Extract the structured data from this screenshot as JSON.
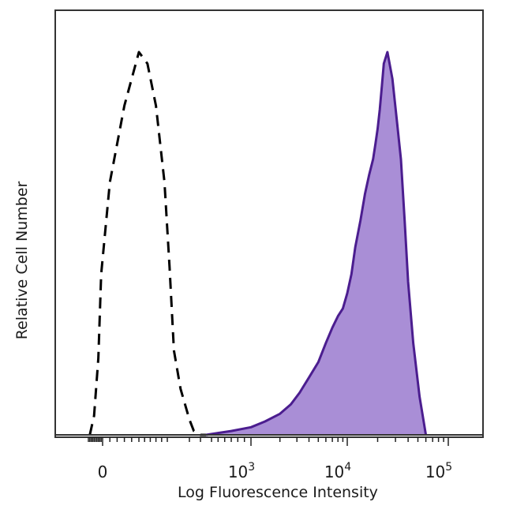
{
  "chart_data": {
    "type": "area",
    "title": "",
    "xlabel": "Log Fluorescence Intensity",
    "ylabel": "Relative Cell Number",
    "x_scale": "biexponential",
    "grid": false,
    "legend": "none",
    "ylim": [
      0,
      100
    ],
    "xticks": [
      {
        "label": "0",
        "value": 0
      },
      {
        "label": "10",
        "exponent": "3",
        "value": 1000
      },
      {
        "label": "10",
        "exponent": "4",
        "value": 10000
      },
      {
        "label": "10",
        "exponent": "5",
        "value": 100000
      }
    ],
    "series": [
      {
        "style": "dashed",
        "color": "#000000",
        "fill": "none",
        "x": [
          -90,
          -60,
          -30,
          -10,
          10,
          30,
          50,
          65,
          80,
          95,
          110,
          130,
          160,
          200,
          240,
          300,
          350
        ],
        "y": [
          0,
          5,
          20,
          42,
          66,
          86,
          100,
          97,
          86,
          66,
          44,
          22,
          12,
          4,
          1,
          0,
          0
        ]
      },
      {
        "style": "solid",
        "color": "#4b1d8f",
        "fill": "#a98ed6",
        "x": [
          350,
          500,
          700,
          1000,
          1400,
          2000,
          2600,
          3200,
          4000,
          5000,
          6000,
          7000,
          8000,
          9000,
          10000,
          11000,
          12000,
          13500,
          15000,
          16500,
          18000,
          19000,
          20000,
          21000,
          22000,
          23000,
          25000,
          28000,
          31000,
          34000,
          37000,
          40000,
          45000,
          52000,
          60000
        ],
        "y": [
          0,
          0.5,
          1,
          2,
          3.5,
          5.5,
          8,
          11,
          15,
          19,
          24,
          28,
          31,
          33,
          37,
          42,
          49,
          56,
          63,
          68,
          72,
          76,
          80,
          85,
          91,
          97,
          100,
          93,
          82,
          72,
          56,
          40,
          24,
          10,
          0
        ]
      }
    ]
  }
}
